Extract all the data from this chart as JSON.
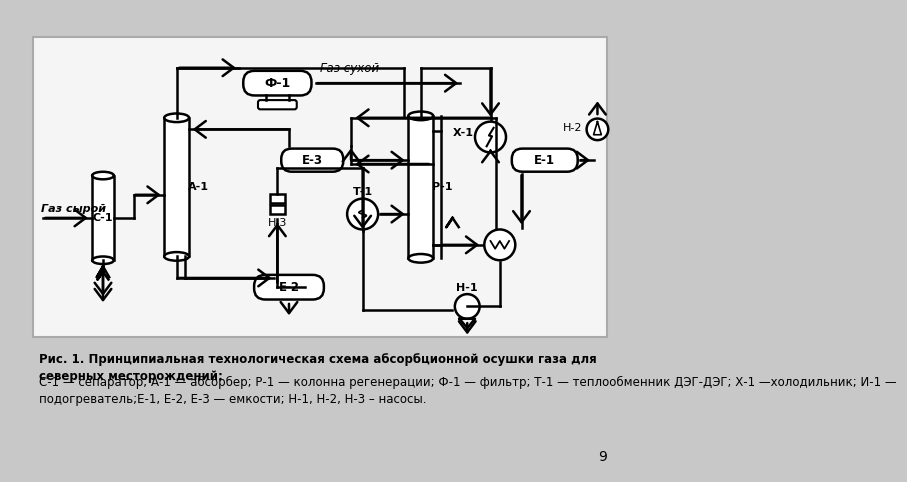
{
  "bg_color": "#c8c8c8",
  "diagram_bg": "#f5f5f5",
  "lc": "#000000",
  "lw": 1.8,
  "caption_bold": "Рис. 1. Принципиальная технологическая схема абсорбционной осушки газа для\nсеверных месторождений:",
  "caption_normal": "С-1 — сепаратор; А-1 — абсорбер; Р-1 — колонна регенерации; Ф-1 — фильтр; Т-1 — теплообменник ДЭГ-ДЭГ; Х-1 —холодильник; И-1 —\nподогреватель;Е-1, Е-2, Е-3 — емкости; Н-1, Н-2, Н-3 – насосы.",
  "page_number": "9"
}
